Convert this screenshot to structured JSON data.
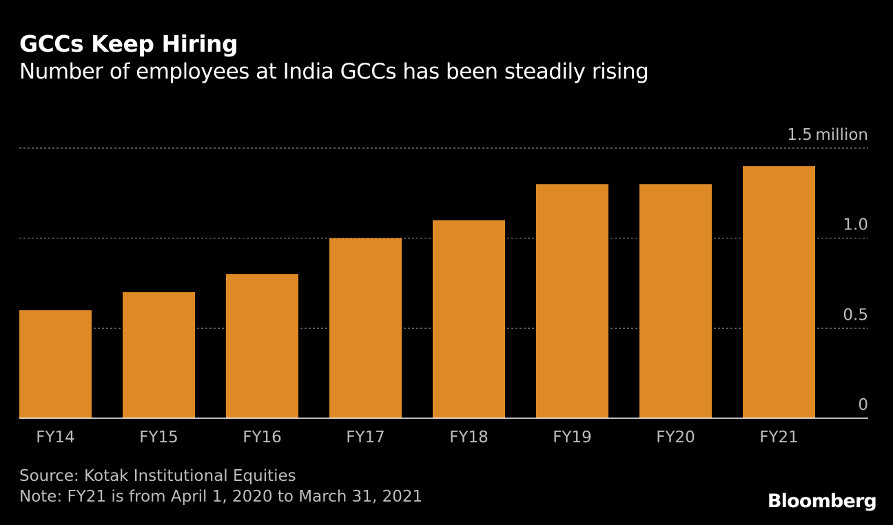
{
  "chart_data": {
    "type": "bar",
    "title": "GCCs Keep Hiring",
    "subtitle": "Number of employees at India GCCs has been steadily rising",
    "categories": [
      "FY14",
      "FY15",
      "FY16",
      "FY17",
      "FY18",
      "FY19",
      "FY20",
      "FY21"
    ],
    "values": [
      0.6,
      0.7,
      0.8,
      1.0,
      1.1,
      1.3,
      1.3,
      1.4
    ],
    "unit": "million",
    "ylim": [
      0,
      1.5
    ],
    "yticks": [
      0,
      0.5,
      1.0,
      1.5
    ],
    "ytick_labels": [
      "0",
      "0.5",
      "1.0",
      "1.5"
    ],
    "grid": true,
    "bar_color": "#dd8a26",
    "source": "Source: Kotak Institutional Equities",
    "note": "Note: FY21 is from April 1, 2020 to March 31, 2021",
    "brand": "Bloomberg"
  }
}
